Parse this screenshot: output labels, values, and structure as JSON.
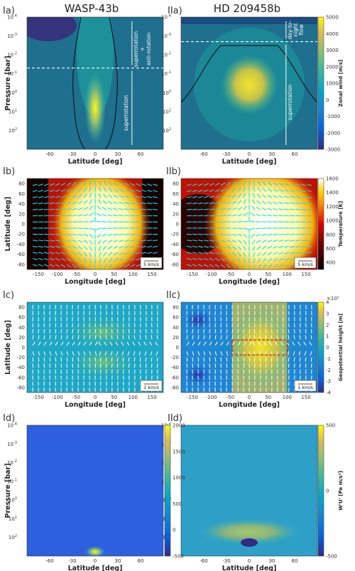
{
  "titles": {
    "left": "WASP-43b",
    "right": "HD 209458b"
  },
  "chart_data": [
    {
      "id": "Ia",
      "panel_label": "Ia)",
      "type": "heatmap",
      "planet": "WASP-43b",
      "xlabel": "Latitude [deg]",
      "ylabel": "Pressure [bar]",
      "x_ticks": [
        "-60",
        "-30",
        "0",
        "30",
        "60"
      ],
      "y_ticks": [
        "10",
        "10",
        "10",
        "10",
        "10",
        "10",
        "10"
      ],
      "y_exp": [
        "-4",
        "-3",
        "-2",
        "-1",
        "0",
        "1",
        "2"
      ],
      "xlim": [
        -90,
        90
      ],
      "ylim_bar": [
        0.0001,
        1000
      ],
      "log_y": true,
      "dashed_line_pressure_bar": 0.05,
      "annotations": [
        "superrotation",
        "+",
        "anti-rotation",
        "superrotation"
      ],
      "colorbar": "zonal_wind"
    },
    {
      "id": "IIa",
      "panel_label": "IIa)",
      "type": "heatmap",
      "planet": "HD 209458b",
      "xlabel": "Latitude [deg]",
      "ylabel": "",
      "x_ticks": [
        "-60",
        "-30",
        "0",
        "30",
        "60"
      ],
      "y_ticks": [
        "10",
        "10",
        "10",
        "10",
        "10",
        "10",
        "10"
      ],
      "y_exp": [
        "-4",
        "-3",
        "-2",
        "-1",
        "0",
        "1",
        "2"
      ],
      "xlim": [
        -90,
        90
      ],
      "ylim_bar": [
        0.0001,
        1000
      ],
      "log_y": true,
      "dashed_line_pressure_bar": 0.002,
      "annotations": [
        "day-to-",
        "night",
        "flow",
        "superrotation"
      ],
      "colorbar": "zonal_wind"
    },
    {
      "id": "Ib",
      "panel_label": "Ib)",
      "type": "heatmap",
      "planet": "WASP-43b",
      "xlabel": "Longitude [deg]",
      "ylabel": "Latitude [deg]",
      "x_ticks": [
        "-150",
        "-100",
        "-50",
        "0",
        "50",
        "100",
        "150"
      ],
      "y_ticks": [
        "80",
        "60",
        "40",
        "20",
        "0",
        "-20",
        "-40",
        "-60",
        "-80"
      ],
      "xlim": [
        -180,
        180
      ],
      "ylim": [
        -90,
        90
      ],
      "scale_label": "5 km/s",
      "colorbar": "temperature"
    },
    {
      "id": "IIb",
      "panel_label": "IIb)",
      "type": "heatmap",
      "planet": "HD 209458b",
      "xlabel": "Longitude [deg]",
      "ylabel": "",
      "x_ticks": [
        "-150",
        "-100",
        "-50",
        "0",
        "50",
        "100",
        "150"
      ],
      "y_ticks": [
        "80",
        "60",
        "40",
        "20",
        "0",
        "-20",
        "-40",
        "-60",
        "-80"
      ],
      "xlim": [
        -180,
        180
      ],
      "ylim": [
        -90,
        90
      ],
      "scale_label": "5 km/s",
      "colorbar": "temperature"
    },
    {
      "id": "Ic",
      "panel_label": "Ic)",
      "type": "heatmap",
      "planet": "WASP-43b",
      "xlabel": "Longitude [deg]",
      "ylabel": "Latitude [deg]",
      "x_ticks": [
        "-150",
        "-100",
        "-50",
        "0",
        "50",
        "100",
        "150"
      ],
      "y_ticks": [
        "80",
        "60",
        "40",
        "20",
        "0",
        "-20",
        "-40",
        "-60",
        "-80"
      ],
      "xlim": [
        -180,
        180
      ],
      "ylim": [
        -90,
        90
      ],
      "scale_label": "1 km/s",
      "colorbar": "geopotential"
    },
    {
      "id": "IIc",
      "panel_label": "IIc)",
      "type": "heatmap",
      "planet": "HD 209458b",
      "xlabel": "Longitude [deg]",
      "ylabel": "",
      "x_ticks": [
        "-150",
        "-100",
        "-50",
        "0",
        "50",
        "100",
        "150"
      ],
      "y_ticks": [
        "80",
        "60",
        "40",
        "20",
        "0",
        "-20",
        "-40",
        "-60",
        "-80"
      ],
      "xlim": [
        -180,
        180
      ],
      "ylim": [
        -90,
        90
      ],
      "scale_label": "1 km/s",
      "colorbar": "geopotential",
      "highlight_box_deg": {
        "lon": [
          -45,
          100
        ],
        "lat": [
          -15,
          15
        ]
      }
    },
    {
      "id": "Id",
      "panel_label": "Id)",
      "type": "heatmap",
      "planet": "WASP-43b",
      "xlabel": "Latitude [deg]",
      "ylabel": "Pressure [bar]",
      "x_ticks": [
        "-60",
        "-30",
        "0",
        "30",
        "60"
      ],
      "y_ticks": [
        "10",
        "10",
        "10",
        "10",
        "10",
        "10",
        "10"
      ],
      "y_exp": [
        "-4",
        "-3",
        "-2",
        "-1",
        "0",
        "1",
        "2"
      ],
      "xlim": [
        -90,
        90
      ],
      "ylim_bar": [
        0.0001,
        1000
      ],
      "log_y": true,
      "colorbar": "flux_left"
    },
    {
      "id": "IId",
      "panel_label": "IId)",
      "type": "heatmap",
      "planet": "HD 209458b",
      "xlabel": "Latitude [deg]",
      "ylabel": "",
      "x_ticks": [
        "-60",
        "-30",
        "0",
        "30",
        "60"
      ],
      "y_ticks": [
        "10",
        "10",
        "10",
        "10",
        "10",
        "10",
        "10"
      ],
      "y_exp": [
        "-4",
        "-3",
        "-2",
        "-1",
        "0",
        "1",
        "2"
      ],
      "xlim": [
        -90,
        90
      ],
      "ylim_bar": [
        0.0001,
        1000
      ],
      "log_y": true,
      "colorbar": "flux_right"
    }
  ],
  "colorbars": {
    "zonal_wind": {
      "label": "Zonal wind [m/s]",
      "min": -3000,
      "max": 5000,
      "ticks": [
        "5000",
        "4000",
        "3000",
        "2000",
        "1000",
        "0",
        "-1000",
        "-2000",
        "-3000"
      ]
    },
    "temperature": {
      "label": "Temperature [K]",
      "min": 300,
      "max": 1600,
      "ticks": [
        "1600",
        "1400",
        "1200",
        "1000",
        "800",
        "600",
        "400"
      ]
    },
    "geopotential": {
      "label": "Geopotential height [m]",
      "min": -4,
      "max": 4,
      "exponent": "×10⁵",
      "ticks": [
        "4",
        "3",
        "2",
        "1",
        "0",
        "-1",
        "-2",
        "-3",
        "-4"
      ]
    },
    "flux_left": {
      "label": "",
      "min": -500,
      "max": 2000,
      "ticks": [
        "2000",
        "1500",
        "1000",
        "500",
        "0",
        "-500"
      ]
    },
    "flux_right": {
      "label": "W'U' [Pa m/s²]",
      "min": -500,
      "max": 500,
      "ticks": [
        "500",
        "0",
        "-500"
      ]
    }
  },
  "colors": {
    "parula_low": "#352a87",
    "parula_mid": "#21b4b3",
    "parula_high": "#f9fb0e",
    "arrow": "#00e5ff",
    "dashed": "#ffffff",
    "highlight_box": "#d01010"
  }
}
